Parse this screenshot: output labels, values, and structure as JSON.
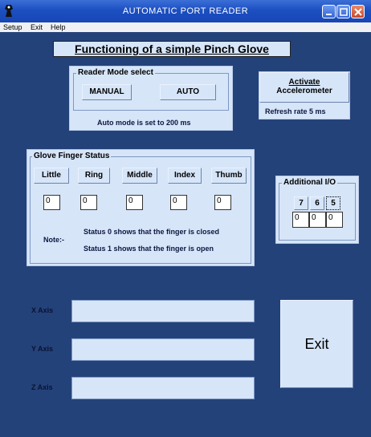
{
  "window": {
    "title": "AUTOMATIC PORT READER"
  },
  "menu": [
    "Setup",
    "Exit",
    "Help"
  ],
  "heading": "Functioning of a simple Pinch Glove",
  "reader_mode": {
    "label": "Reader Mode select",
    "manual": "MANUAL",
    "auto": "AUTO",
    "note": "Auto mode is set to 200 ms"
  },
  "accelerometer": {
    "button_line1": "Activate",
    "button_line2": "Accelerometer",
    "refresh": "Refresh rate 5 ms"
  },
  "glove": {
    "label": "Glove Finger Status",
    "fingers": [
      "Little",
      "Ring",
      "Middle",
      "Index",
      "Thumb"
    ],
    "values": [
      "0",
      "0",
      "0",
      "0",
      "0"
    ],
    "note_label": "Note:-",
    "note1": "Status 0 shows that the finger is closed",
    "note2": "Status 1 shows that the finger is open"
  },
  "additional_io": {
    "label": "Additional I/O",
    "channels": [
      "7",
      "6",
      "5"
    ],
    "values": [
      "0",
      "0",
      "0"
    ]
  },
  "axes": {
    "x_label": "X Axis",
    "x_value": "",
    "y_label": "Y Axis",
    "y_value": "",
    "z_label": "Z Axis",
    "z_value": ""
  },
  "exit_label": "Exit",
  "colors": {
    "background": "#24427a",
    "panel": "#d6e5f8",
    "titlebar": "#1c4fc1"
  },
  "icons": {
    "app": "app-icon",
    "minimize": "minimize-icon",
    "maximize": "maximize-icon",
    "close": "close-icon"
  }
}
